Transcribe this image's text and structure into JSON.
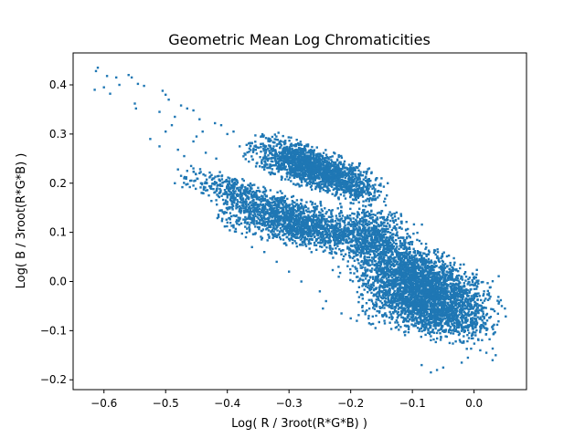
{
  "chart_data": {
    "type": "scatter",
    "title": "Geometric Mean Log Chromaticities",
    "xlabel": "Log( R / 3root(R*G*B) )",
    "ylabel": "Log( B / 3root(R*G*B) )",
    "xlim": [
      -0.65,
      0.085
    ],
    "ylim": [
      -0.22,
      0.465
    ],
    "xticks": [
      -0.6,
      -0.5,
      -0.4,
      -0.3,
      -0.2,
      -0.1,
      0.0
    ],
    "xtick_labels": [
      "−0.6",
      "−0.5",
      "−0.4",
      "−0.3",
      "−0.2",
      "−0.1",
      "0.0"
    ],
    "yticks": [
      -0.2,
      -0.1,
      0.0,
      0.1,
      0.2,
      0.3,
      0.4
    ],
    "ytick_labels": [
      "−0.2",
      "−0.1",
      "0.0",
      "0.1",
      "0.2",
      "0.3",
      "0.4"
    ],
    "marker_color": "#1f77b4",
    "grid": false,
    "legend": "none",
    "points": [
      [
        -0.61,
        0.435
      ],
      [
        -0.613,
        0.428
      ],
      [
        -0.595,
        0.418
      ],
      [
        -0.58,
        0.415
      ],
      [
        -0.56,
        0.42
      ],
      [
        -0.555,
        0.415
      ],
      [
        -0.545,
        0.402
      ],
      [
        -0.535,
        0.398
      ],
      [
        -0.575,
        0.4
      ],
      [
        -0.6,
        0.395
      ],
      [
        -0.615,
        0.39
      ],
      [
        -0.59,
        0.382
      ],
      [
        -0.505,
        0.388
      ],
      [
        -0.5,
        0.38
      ],
      [
        -0.495,
        0.37
      ],
      [
        -0.55,
        0.362
      ],
      [
        -0.548,
        0.352
      ],
      [
        -0.51,
        0.345
      ],
      [
        -0.475,
        0.358
      ],
      [
        -0.465,
        0.352
      ],
      [
        -0.455,
        0.348
      ],
      [
        -0.485,
        0.335
      ],
      [
        -0.445,
        0.33
      ],
      [
        -0.49,
        0.318
      ],
      [
        -0.42,
        0.322
      ],
      [
        -0.41,
        0.318
      ],
      [
        -0.44,
        0.305
      ],
      [
        -0.5,
        0.305
      ],
      [
        -0.525,
        0.29
      ],
      [
        -0.45,
        0.295
      ],
      [
        -0.455,
        0.285
      ],
      [
        -0.4,
        0.3
      ],
      [
        -0.39,
        0.305
      ],
      [
        -0.51,
        0.275
      ],
      [
        -0.48,
        0.268
      ],
      [
        -0.47,
        0.255
      ],
      [
        -0.435,
        0.262
      ],
      [
        -0.38,
        0.275
      ],
      [
        -0.372,
        0.26
      ],
      [
        -0.418,
        0.25
      ],
      [
        -0.48,
        0.228
      ],
      [
        -0.465,
        0.225
      ],
      [
        -0.455,
        0.23
      ],
      [
        -0.47,
        0.21
      ],
      [
        -0.46,
        0.205
      ],
      [
        -0.455,
        0.195
      ],
      [
        -0.485,
        0.2
      ],
      [
        -0.475,
        0.215
      ],
      [
        -0.44,
        0.18
      ],
      [
        -0.43,
        0.175
      ],
      [
        -0.37,
        0.09
      ],
      [
        -0.39,
        0.11
      ],
      [
        -0.36,
        0.07
      ],
      [
        -0.34,
        0.06
      ],
      [
        -0.32,
        0.04
      ],
      [
        -0.3,
        0.02
      ],
      [
        -0.28,
        0.0
      ],
      [
        -0.25,
        -0.02
      ],
      [
        -0.24,
        -0.04
      ],
      [
        -0.245,
        -0.055
      ],
      [
        -0.215,
        -0.065
      ],
      [
        -0.2,
        -0.075
      ],
      [
        -0.19,
        -0.08
      ],
      [
        -0.17,
        -0.085
      ],
      [
        -0.06,
        -0.18
      ],
      [
        -0.07,
        -0.185
      ],
      [
        -0.085,
        -0.17
      ],
      [
        -0.05,
        -0.175
      ],
      [
        -0.02,
        -0.165
      ],
      [
        -0.01,
        -0.155
      ],
      [
        0.01,
        -0.14
      ],
      [
        0.02,
        -0.145
      ],
      [
        0.035,
        -0.15
      ],
      [
        0.03,
        -0.16
      ],
      [
        0.045,
        -0.05
      ],
      [
        0.05,
        -0.055
      ],
      [
        0.04,
        -0.045
      ],
      [
        0.025,
        -0.035
      ],
      [
        0.02,
        -0.095
      ],
      [
        0.01,
        -0.1
      ],
      [
        -0.005,
        -0.09
      ],
      [
        -0.185,
        0.24
      ],
      [
        -0.17,
        0.23
      ],
      [
        -0.15,
        0.21
      ],
      [
        -0.14,
        0.2
      ],
      [
        -0.13,
        0.12
      ],
      [
        -0.12,
        0.11
      ],
      [
        -0.16,
        0.135
      ],
      [
        -0.18,
        0.145
      ],
      [
        -0.2,
        0.16
      ],
      [
        -0.22,
        0.17
      ],
      [
        -0.11,
        0.07
      ],
      [
        -0.09,
        0.06
      ],
      [
        -0.075,
        0.055
      ],
      [
        -0.06,
        0.048
      ],
      [
        -0.05,
        0.04
      ],
      [
        -0.04,
        0.025
      ],
      [
        -0.035,
        0.015
      ],
      [
        -0.03,
        0.005
      ],
      [
        -0.025,
        -0.005
      ],
      [
        -0.02,
        -0.015
      ]
    ],
    "clusters": [
      {
        "cx": -0.27,
        "cy": 0.235,
        "sx": 0.045,
        "sy": 0.018,
        "rot": -0.45,
        "n": 1500
      },
      {
        "cx": -0.3,
        "cy": 0.125,
        "sx": 0.055,
        "sy": 0.022,
        "rot": -0.35,
        "n": 1500
      },
      {
        "cx": -0.17,
        "cy": 0.095,
        "sx": 0.03,
        "sy": 0.025,
        "rot": -0.4,
        "n": 700
      },
      {
        "cx": -0.09,
        "cy": 0.0,
        "sx": 0.055,
        "sy": 0.03,
        "rot": -0.55,
        "n": 2300
      },
      {
        "cx": -0.07,
        "cy": -0.06,
        "sx": 0.05,
        "sy": 0.025,
        "rot": -0.3,
        "n": 1200
      },
      {
        "cx": -0.4,
        "cy": 0.19,
        "sx": 0.035,
        "sy": 0.012,
        "rot": -0.3,
        "n": 250
      },
      {
        "cx": -0.2,
        "cy": 0.2,
        "sx": 0.03,
        "sy": 0.015,
        "rot": -0.5,
        "n": 350
      }
    ]
  }
}
